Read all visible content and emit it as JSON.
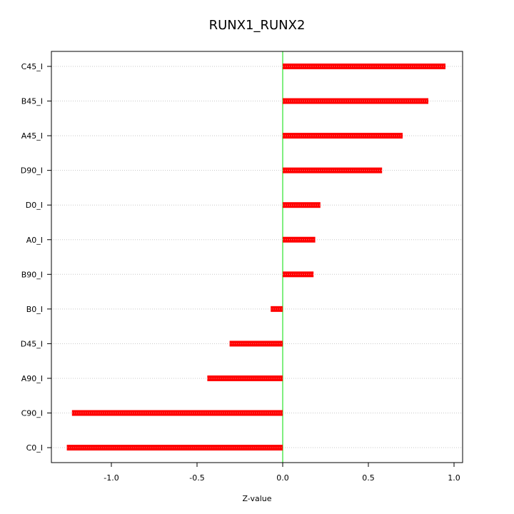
{
  "chart_data": {
    "type": "bar",
    "orientation": "horizontal",
    "title": "RUNX1_RUNX2",
    "xlabel": "Z-value",
    "ylabel": "",
    "categories": [
      "C45_I",
      "B45_I",
      "A45_I",
      "D90_I",
      "D0_I",
      "A0_I",
      "B90_I",
      "B0_I",
      "D45_I",
      "A90_I",
      "C90_I",
      "C0_I"
    ],
    "values": [
      0.95,
      0.85,
      0.7,
      0.58,
      0.22,
      0.19,
      0.18,
      -0.07,
      -0.31,
      -0.44,
      -1.23,
      -1.26
    ],
    "xlim": [
      -1.35,
      1.05
    ],
    "xticks": [
      -1.0,
      -0.5,
      0.0,
      0.5,
      1.0
    ],
    "xtick_labels": [
      "-1.0",
      "-0.5",
      "0.0",
      "0.5",
      "1.0"
    ],
    "grid": "horizontal-dotted",
    "zero_line": true,
    "colors": {
      "bar": "#ff0000",
      "zero_line": "#00dd00",
      "grid": "#c8c8c8",
      "axis": "#000000"
    }
  }
}
